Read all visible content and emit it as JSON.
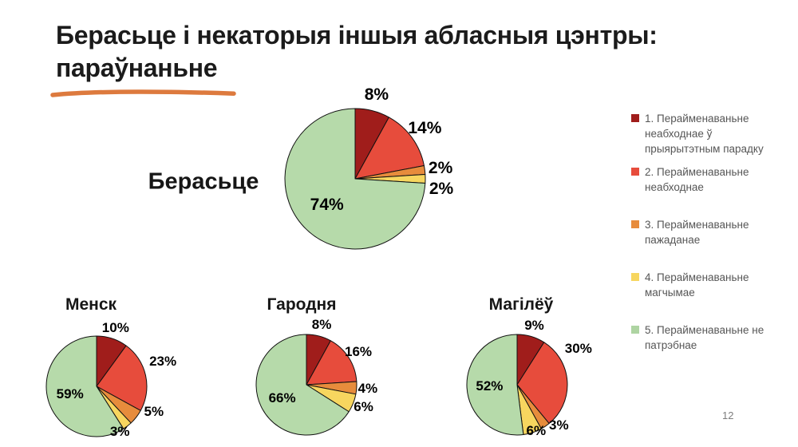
{
  "slide": {
    "title_line1": "Берасьце і некаторыя іншыя абласныя цэнтры:",
    "title_line2": "параўнаньне",
    "accent_color": "#DD7A3E",
    "page_number": "12"
  },
  "legend": {
    "items": [
      {
        "label": "1. Перайменаваньне неабходнае ў прыярытэтным парадку",
        "color": "#A01D1B"
      },
      {
        "label": "2. Перайменаваньне неабходнае",
        "color": "#E74C3C"
      },
      {
        "label": "3. Перайменаваньне пажаданае",
        "color": "#E78C3C"
      },
      {
        "label": "4. Перайменаваньне магчымае",
        "color": "#F7D65F"
      },
      {
        "label": "5. Перайменаваньне не патрэбнае",
        "color": "#AED4A2"
      }
    ]
  },
  "chart_data": {
    "type": "pie",
    "unit": "%",
    "direction": "clockwise",
    "start_angle": "top",
    "legend_position": "right",
    "categories": [
      "1. Перайменаваньне неабходнае ў прыярытэтным парадку",
      "2. Перайменаваньне неабходнае",
      "3. Перайменаваньне пажаданае",
      "4. Перайменаваньне магчымае",
      "5. Перайменаваньне не патрэбнае"
    ],
    "colors": [
      "#A01D1B",
      "#E74C3C",
      "#E78C3C",
      "#F7D65F",
      "#B6DAAA"
    ],
    "charts": [
      {
        "title": "Берасьце",
        "values": [
          8,
          14,
          2,
          2,
          74
        ]
      },
      {
        "title": "Менск",
        "values": [
          10,
          23,
          5,
          3,
          59
        ]
      },
      {
        "title": "Гародня",
        "values": [
          8,
          16,
          4,
          6,
          66
        ]
      },
      {
        "title": "Магілёў",
        "values": [
          9,
          30,
          3,
          6,
          52
        ]
      }
    ]
  }
}
